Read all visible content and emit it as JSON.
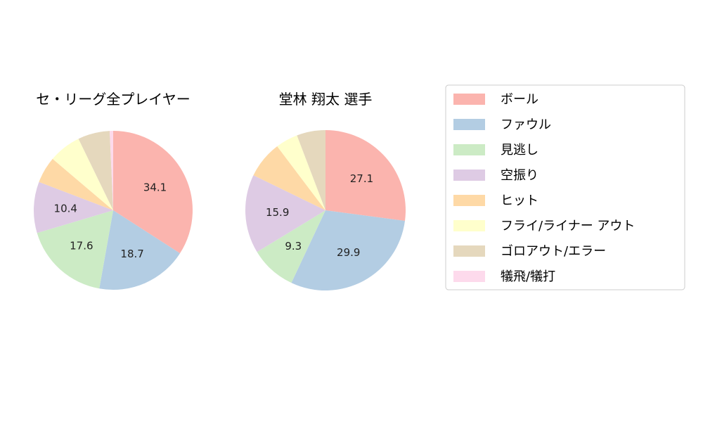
{
  "chart_data": [
    {
      "type": "pie",
      "title": "セ・リーグ全プレイヤー",
      "categories": [
        "ボール",
        "ファウル",
        "見逃し",
        "空振り",
        "ヒット",
        "フライ/ライナー アウト",
        "ゴロアウト/エラー",
        "犠飛/犠打"
      ],
      "values": [
        34.1,
        18.7,
        17.6,
        10.4,
        5.4,
        6.6,
        6.5,
        0.7
      ],
      "data_labels": [
        "34.1",
        "18.7",
        "17.6",
        "10.4",
        "",
        "",
        "",
        ""
      ]
    },
    {
      "type": "pie",
      "title": "堂林 翔太  選手",
      "categories": [
        "ボール",
        "ファウル",
        "見逃し",
        "空振り",
        "ヒット",
        "フライ/ライナー アウト",
        "ゴロアウト/エラー",
        "犠飛/犠打"
      ],
      "values": [
        27.1,
        29.9,
        9.3,
        15.9,
        7.5,
        4.5,
        5.8,
        0
      ],
      "data_labels": [
        "27.1",
        "29.9",
        "9.3",
        "15.9",
        "",
        "",
        "",
        ""
      ]
    }
  ],
  "legend": {
    "position": "right",
    "entries": [
      "ボール",
      "ファウル",
      "見逃し",
      "空振り",
      "ヒット",
      "フライ/ライナー アウト",
      "ゴロアウト/エラー",
      "犠飛/犠打"
    ]
  },
  "colors": [
    "#fbb4ae",
    "#b3cde3",
    "#ccebc5",
    "#decbe4",
    "#fed9a6",
    "#ffffcc",
    "#e5d8bd",
    "#fddaec"
  ]
}
